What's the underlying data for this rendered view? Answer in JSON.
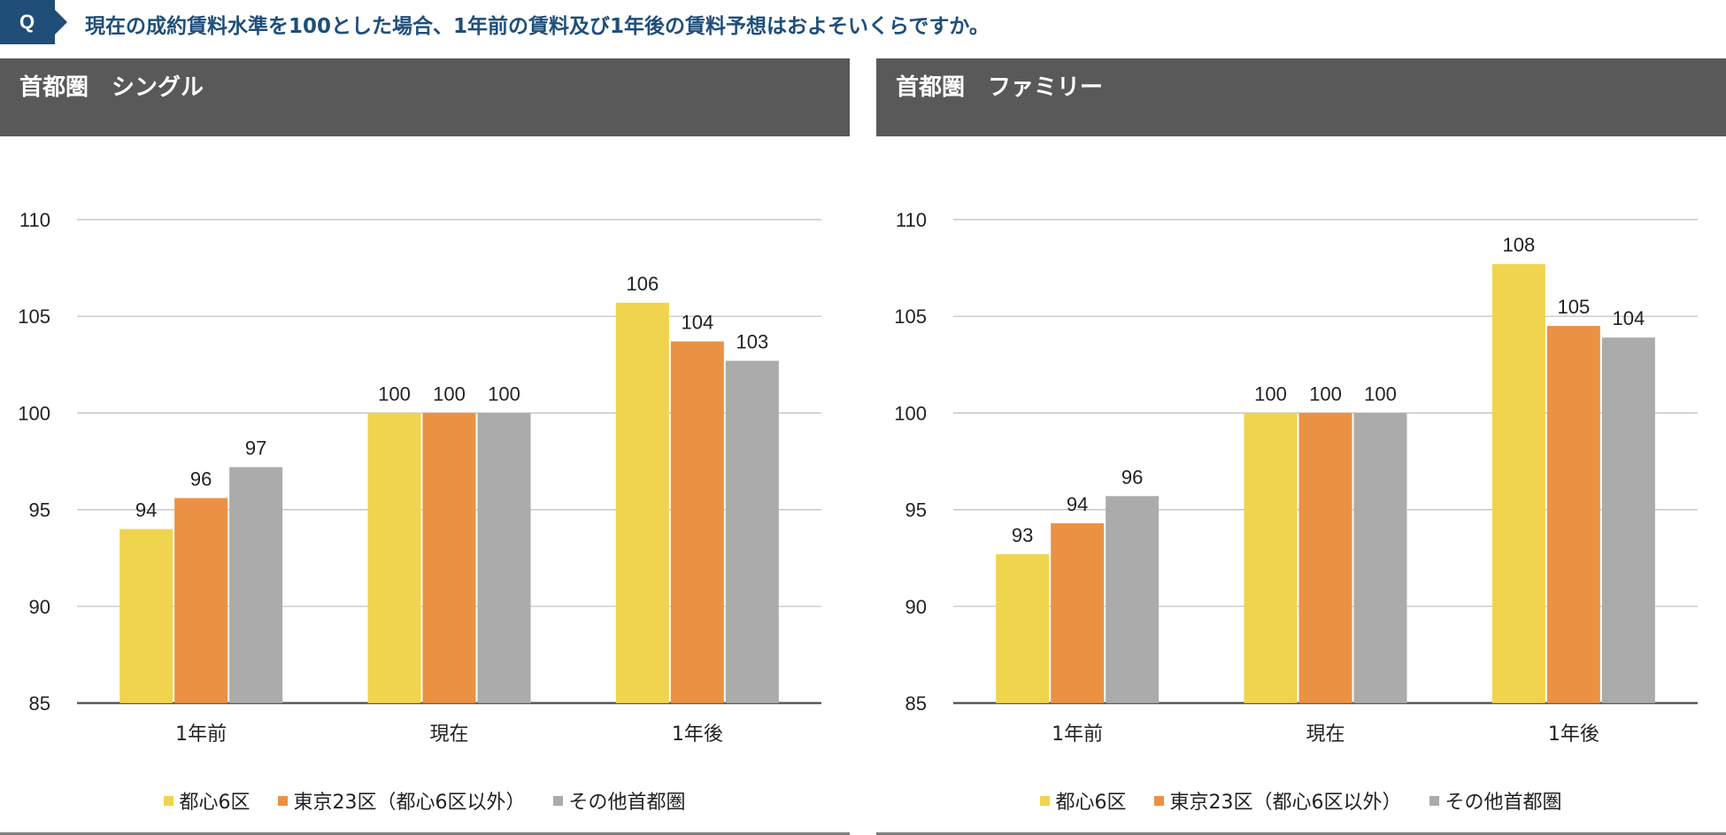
{
  "header": {
    "badge": "Q",
    "question": "現在の成約賃料水準を100とした場合、1年前の賃料及び1年後の賃料予想はおよそいくらですか。"
  },
  "colors": {
    "series": [
      "#f0d44e",
      "#eb9143",
      "#ababab"
    ],
    "header_bg": "#595959",
    "question_blue": "#1f4e79"
  },
  "legend": [
    "都心6区",
    "東京23区（都心6区以外）",
    "その他首都圏"
  ],
  "chart_data": [
    {
      "type": "bar",
      "title": "首都圏　シングル",
      "categories": [
        "1年前",
        "現在",
        "1年後"
      ],
      "series": [
        {
          "name": "都心6区",
          "values": [
            94,
            100,
            106
          ],
          "labels": [
            "94",
            "100",
            "106"
          ],
          "plot_values": [
            94.0,
            100.0,
            105.7
          ]
        },
        {
          "name": "東京23区（都心6区以外）",
          "values": [
            96,
            100,
            104
          ],
          "labels": [
            "96",
            "100",
            "104"
          ],
          "plot_values": [
            95.6,
            100.0,
            103.7
          ]
        },
        {
          "name": "その他首都圏",
          "values": [
            97,
            100,
            103
          ],
          "labels": [
            "97",
            "100",
            "103"
          ],
          "plot_values": [
            97.2,
            100.0,
            102.7
          ]
        }
      ],
      "ylim": [
        85,
        110
      ],
      "yticks": [
        "85",
        "90",
        "95",
        "100",
        "105",
        "110"
      ],
      "grid": true,
      "legend_position": "bottom"
    },
    {
      "type": "bar",
      "title": "首都圏　ファミリー",
      "categories": [
        "1年前",
        "現在",
        "1年後"
      ],
      "series": [
        {
          "name": "都心6区",
          "values": [
            93,
            100,
            108
          ],
          "labels": [
            "93",
            "100",
            "108"
          ],
          "plot_values": [
            92.7,
            100.0,
            107.7
          ]
        },
        {
          "name": "東京23区（都心6区以外）",
          "values": [
            94,
            100,
            105
          ],
          "labels": [
            "94",
            "100",
            "105"
          ],
          "plot_values": [
            94.3,
            100.0,
            104.5
          ]
        },
        {
          "name": "その他首都圏",
          "values": [
            96,
            100,
            104
          ],
          "labels": [
            "96",
            "100",
            "104"
          ],
          "plot_values": [
            95.7,
            100.0,
            103.9
          ]
        }
      ],
      "ylim": [
        85,
        110
      ],
      "yticks": [
        "85",
        "90",
        "95",
        "100",
        "105",
        "110"
      ],
      "grid": true,
      "legend_position": "bottom"
    }
  ]
}
